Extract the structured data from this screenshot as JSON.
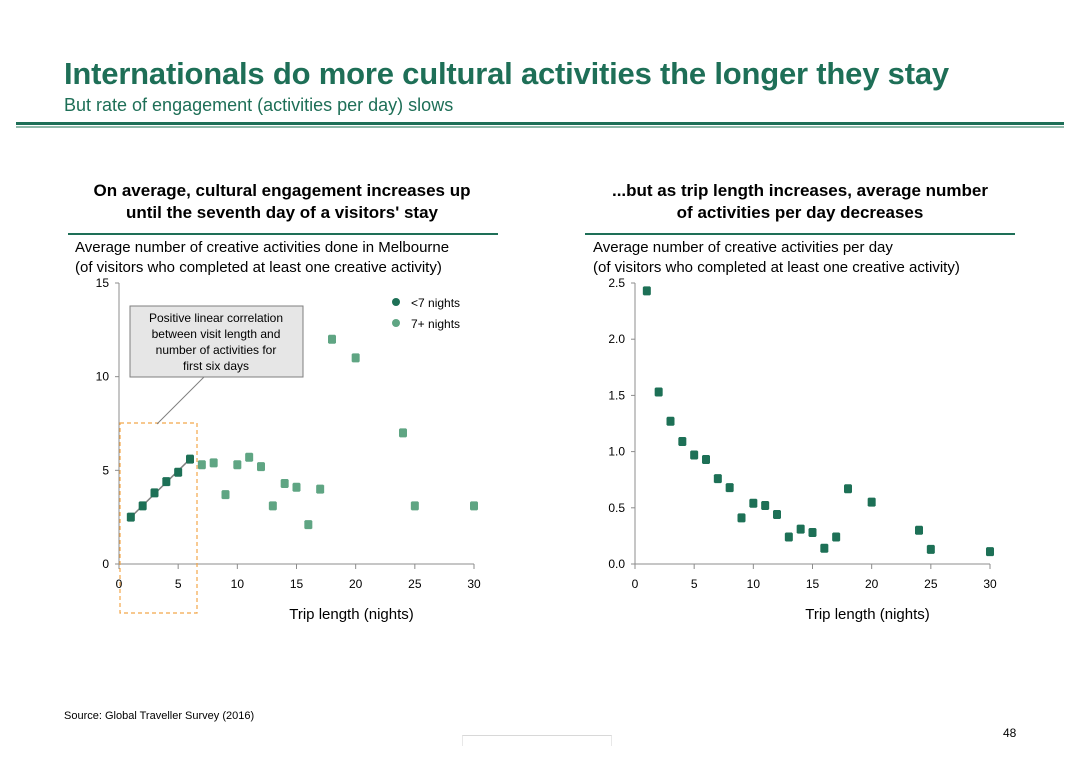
{
  "header": {
    "title": "Internationals do more cultural activities the longer they stay",
    "subtitle": "But rate of engagement (activities per day) slows"
  },
  "left_panel": {
    "heading_line1": "On average, cultural engagement increases up",
    "heading_line2": "until the seventh day of a visitors' stay",
    "desc_line1": "Average number of creative activities done in Melbourne",
    "desc_line2": "(of visitors who completed at least one creative activity)",
    "callout": [
      "Positive linear correlation",
      "between visit length and",
      "number of activities for",
      "first six days"
    ]
  },
  "right_panel": {
    "heading_line1": "...but as trip length increases, average number",
    "heading_line2": "of activities per day decreases",
    "desc_line1": "Average number of creative activities per day",
    "desc_line2": "(of visitors who completed at least one creative activity)"
  },
  "footer": {
    "source": "Source: Global Traveller Survey (2016)",
    "page_number": "48"
  },
  "colors": {
    "primary": "#1e6f57",
    "dark_series": "#1d7056",
    "light_series": "#5fa583",
    "trend_line": "#7f7f7f",
    "highlight_box": "#f2a64a",
    "callout_fill": "#e6e6e6"
  },
  "chart_data": [
    {
      "type": "scatter",
      "xlabel": "Trip length (nights)",
      "ylabel": "",
      "xlim": [
        0,
        30
      ],
      "ylim": [
        0,
        15
      ],
      "x_ticks": [
        "0",
        "5",
        "10",
        "15",
        "20",
        "25",
        "30"
      ],
      "y_ticks": [
        "0",
        "5",
        "10",
        "15"
      ],
      "legend_position": "top-right",
      "series": [
        {
          "name": "<7 nights",
          "color": "#1d7056",
          "points": [
            [
              1,
              2.5
            ],
            [
              2,
              3.1
            ],
            [
              3,
              3.8
            ],
            [
              4,
              4.4
            ],
            [
              5,
              4.9
            ],
            [
              6,
              5.6
            ]
          ]
        },
        {
          "name": "7+ nights",
          "color": "#5fa583",
          "points": [
            [
              7,
              5.3
            ],
            [
              8,
              5.4
            ],
            [
              9,
              3.7
            ],
            [
              10,
              5.3
            ],
            [
              11,
              5.7
            ],
            [
              12,
              5.2
            ],
            [
              13,
              3.1
            ],
            [
              14,
              4.3
            ],
            [
              15,
              4.1
            ],
            [
              16,
              2.1
            ],
            [
              17,
              4.0
            ],
            [
              18,
              12.0
            ],
            [
              20,
              11.0
            ],
            [
              24,
              7.0
            ],
            [
              25,
              3.1
            ],
            [
              30,
              3.1
            ]
          ]
        }
      ],
      "trend_line": [
        [
          1,
          2.5
        ],
        [
          6,
          5.6
        ]
      ]
    },
    {
      "type": "scatter",
      "xlabel": "Trip length (nights)",
      "ylabel": "",
      "xlim": [
        0,
        30
      ],
      "ylim": [
        0,
        2.5
      ],
      "x_ticks": [
        "0",
        "5",
        "10",
        "15",
        "20",
        "25",
        "30"
      ],
      "y_ticks": [
        "0.0",
        "0.5",
        "1.0",
        "1.5",
        "2.0",
        "2.5"
      ],
      "series": [
        {
          "color": "#1d7056",
          "points": [
            [
              1,
              2.43
            ],
            [
              2,
              1.53
            ],
            [
              3,
              1.27
            ],
            [
              4,
              1.09
            ],
            [
              5,
              0.97
            ],
            [
              6,
              0.93
            ],
            [
              7,
              0.76
            ],
            [
              8,
              0.68
            ],
            [
              9,
              0.41
            ],
            [
              10,
              0.54
            ],
            [
              11,
              0.52
            ],
            [
              12,
              0.44
            ],
            [
              13,
              0.24
            ],
            [
              14,
              0.31
            ],
            [
              15,
              0.28
            ],
            [
              16,
              0.14
            ],
            [
              17,
              0.24
            ],
            [
              18,
              0.67
            ],
            [
              20,
              0.55
            ],
            [
              24,
              0.3
            ],
            [
              25,
              0.13
            ],
            [
              30,
              0.11
            ]
          ]
        }
      ]
    }
  ]
}
